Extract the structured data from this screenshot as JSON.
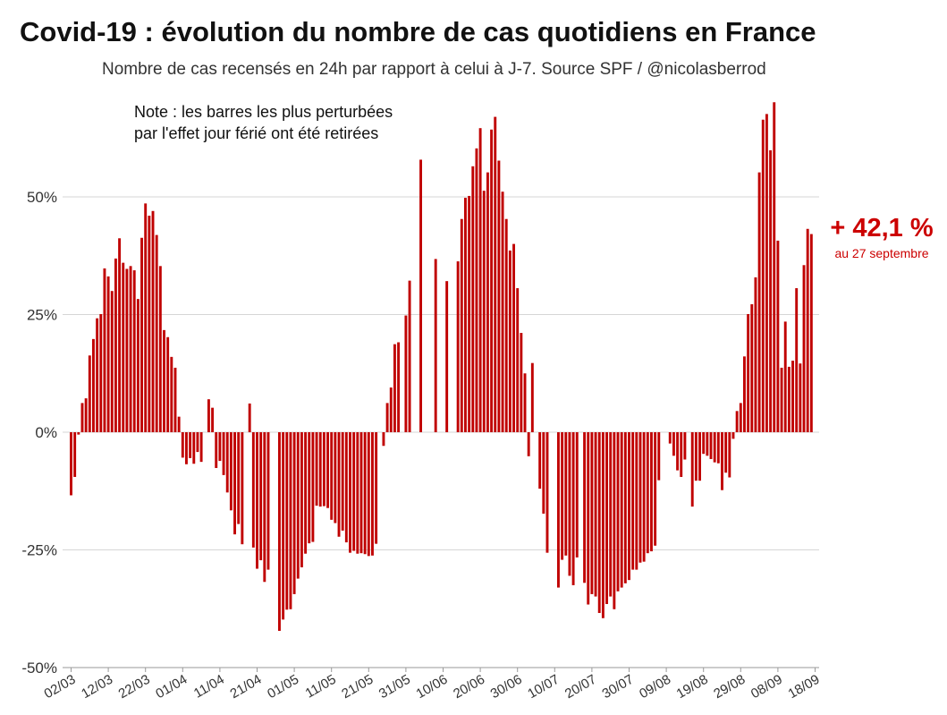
{
  "title": "Covid-19 : évolution du nombre de cas quotidiens en France",
  "subtitle": "Nombre de cas recensés en 24h par rapport à celui à J-7. Source SPF / @nicolasberrod",
  "note": [
    "Note : les barres les plus perturbées",
    "par l'effet jour férié ont été retirées"
  ],
  "annotation": {
    "value": "+ 42,1 %",
    "date": "au 27 septembre",
    "color": "#cc0000"
  },
  "chart_data": {
    "type": "bar",
    "title": "Covid-19 : évolution du nombre de cas quotidiens en France",
    "subtitle": "Nombre de cas recensés en 24h par rapport à celui à J-7. Source SPF / @nicolasberrod",
    "ylabel": "",
    "xlabel": "",
    "ylim": [
      -50,
      70
    ],
    "yticks": [
      -50,
      -25,
      0,
      25,
      50
    ],
    "ytick_labels": [
      "-50%",
      "-25%",
      "0%",
      "25%",
      "50%"
    ],
    "x_tick_labels": [
      "02/03",
      "12/03",
      "22/03",
      "01/04",
      "11/04",
      "21/04",
      "01/05",
      "11/05",
      "21/05",
      "31/05",
      "10/06",
      "20/06",
      "30/06",
      "10/07",
      "20/07",
      "30/07",
      "09/08",
      "19/08",
      "29/08",
      "08/09",
      "18/09"
    ],
    "x_start": "2020-03-02",
    "x_end": "2020-09-27",
    "bar_color": "#c00000",
    "grid": "horizontal",
    "values": [
      -13.4,
      -9.5,
      -0.5,
      6.2,
      7.2,
      16.3,
      19.8,
      24.2,
      25.1,
      34.8,
      33.1,
      30.0,
      36.9,
      41.2,
      36.0,
      34.7,
      35.3,
      34.4,
      28.3,
      41.3,
      48.6,
      46.0,
      47.0,
      41.9,
      35.3,
      21.7,
      20.2,
      16.0,
      13.7,
      3.3,
      -5.4,
      -6.8,
      -5.5,
      -6.7,
      -4.2,
      -6.3,
      null,
      7.0,
      5.2,
      -7.6,
      -6.1,
      -9.1,
      -12.8,
      -16.6,
      -21.7,
      -19.5,
      -23.8,
      null,
      6.1,
      -24.5,
      -29.0,
      -27.2,
      -31.8,
      -29.2,
      null,
      null,
      -42.2,
      -39.8,
      -37.7,
      -37.6,
      -34.4,
      -31.1,
      -28.7,
      -25.8,
      -23.6,
      -23.3,
      -15.6,
      -15.8,
      -15.7,
      -16.1,
      -18.6,
      -19.3,
      -22.2,
      -20.9,
      -23.4,
      -25.6,
      -25.2,
      -25.8,
      -25.7,
      -25.9,
      -26.3,
      -26.2,
      -23.7,
      null,
      -2.9,
      6.2,
      9.5,
      18.7,
      19.1,
      null,
      24.8,
      32.2,
      null,
      null,
      57.9,
      null,
      null,
      null,
      36.8,
      null,
      null,
      32.1,
      null,
      null,
      36.3,
      45.3,
      49.8,
      50.2,
      56.5,
      60.3,
      64.6,
      51.3,
      55.2,
      64.3,
      67.0,
      57.7,
      51.1,
      45.3,
      38.6,
      40.0,
      30.6,
      21.1,
      12.5,
      -5.1,
      14.7,
      null,
      -12.0,
      -17.3,
      -25.6,
      null,
      null,
      -33.0,
      -27.1,
      -26.2,
      -30.5,
      -32.5,
      -26.6,
      null,
      -32.0,
      -36.6,
      -34.4,
      -34.9,
      -38.4,
      -39.5,
      -36.5,
      -34.9,
      -37.6,
      -33.8,
      -33.0,
      -32.1,
      -31.4,
      -29.2,
      -29.2,
      -27.7,
      -27.5,
      -25.7,
      -25.3,
      -24.1,
      -10.2,
      null,
      null,
      -2.4,
      -5.0,
      -8.1,
      -9.5,
      -5.8,
      null,
      -15.8,
      -10.3,
      -10.3,
      -4.6,
      -5.0,
      -5.7,
      -6.4,
      -6.6,
      -12.3,
      -8.6,
      -9.6,
      -1.4,
      4.5,
      6.2,
      16.1,
      25.1,
      27.2,
      32.9,
      55.2,
      66.4,
      67.6,
      59.9,
      70.1,
      40.7,
      13.7,
      23.5,
      13.9,
      15.2,
      30.6,
      14.6,
      35.5,
      43.2,
      42.1
    ]
  }
}
